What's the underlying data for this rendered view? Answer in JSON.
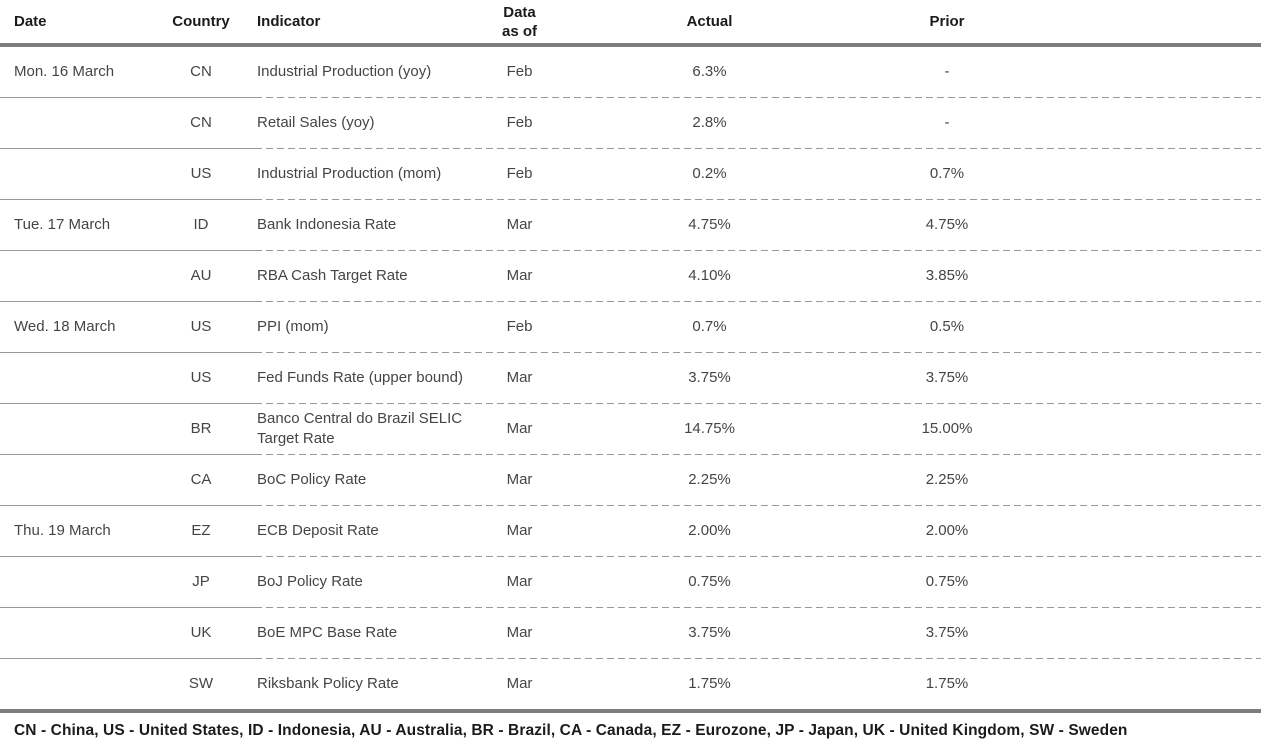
{
  "table": {
    "header": {
      "date": "Date",
      "country": "Country",
      "indicator": "Indicator",
      "data_as_of_line1": "Data",
      "data_as_of_line2": "as of",
      "actual": "Actual",
      "prior": "Prior"
    },
    "rows": [
      {
        "date": "Mon. 16 March",
        "country": "CN",
        "indicator": "Industrial Production (yoy)",
        "as_of": "Feb",
        "actual": "6.3%",
        "prior": "-"
      },
      {
        "date": "",
        "country": "CN",
        "indicator": "Retail Sales (yoy)",
        "as_of": "Feb",
        "actual": "2.8%",
        "prior": "-"
      },
      {
        "date": "",
        "country": "US",
        "indicator": "Industrial Production (mom)",
        "as_of": "Feb",
        "actual": "0.2%",
        "prior": "0.7%"
      },
      {
        "date": "Tue. 17 March",
        "country": "ID",
        "indicator": "Bank Indonesia Rate",
        "as_of": "Mar",
        "actual": "4.75%",
        "prior": "4.75%"
      },
      {
        "date": "",
        "country": "AU",
        "indicator": "RBA Cash Target Rate",
        "as_of": "Mar",
        "actual": "4.10%",
        "prior": "3.85%"
      },
      {
        "date": "Wed. 18 March",
        "country": "US",
        "indicator": "PPI (mom)",
        "as_of": "Feb",
        "actual": "0.7%",
        "prior": "0.5%"
      },
      {
        "date": "",
        "country": "US",
        "indicator": "Fed Funds Rate (upper bound)",
        "as_of": "Mar",
        "actual": "3.75%",
        "prior": "3.75%"
      },
      {
        "date": "",
        "country": "BR",
        "indicator": "Banco Central do Brazil SELIC Target Rate",
        "as_of": "Mar",
        "actual": "14.75%",
        "prior": "15.00%"
      },
      {
        "date": "",
        "country": "CA",
        "indicator": "BoC Policy Rate",
        "as_of": "Mar",
        "actual": "2.25%",
        "prior": "2.25%"
      },
      {
        "date": "Thu. 19 March",
        "country": "EZ",
        "indicator": "ECB Deposit Rate",
        "as_of": "Mar",
        "actual": "2.00%",
        "prior": "2.00%"
      },
      {
        "date": "",
        "country": "JP",
        "indicator": "BoJ Policy Rate",
        "as_of": "Mar",
        "actual": "0.75%",
        "prior": "0.75%"
      },
      {
        "date": "",
        "country": "UK",
        "indicator": "BoE MPC Base Rate",
        "as_of": "Mar",
        "actual": "3.75%",
        "prior": "3.75%"
      },
      {
        "date": "",
        "country": "SW",
        "indicator": "Riksbank Policy Rate",
        "as_of": "Mar",
        "actual": "1.75%",
        "prior": "1.75%"
      }
    ]
  },
  "footer": {
    "legend": "CN - China, US - United States, ID - Indonesia, AU - Australia, BR - Brazil, CA - Canada, EZ - Eurozone, JP - Japan, UK - United Kingdom, SW - Sweden"
  },
  "colors": {
    "background": "#ffffff",
    "header_text": "#1b1b1b",
    "body_text": "#454545",
    "rule_heavy": "#7d7d7d",
    "rule_light": "#9a9a9a",
    "footer_text": "#1b1b1b"
  }
}
